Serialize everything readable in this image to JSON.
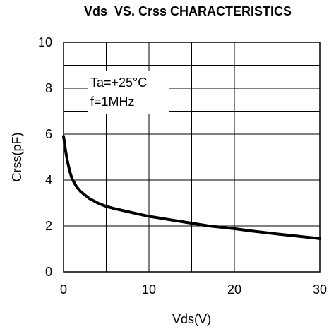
{
  "chart_data": {
    "type": "line",
    "title": "Vds  VS. Crss CHARACTERISTICS",
    "xlabel": "Vds(V)",
    "ylabel": "Crss(pF)",
    "xlim": [
      0,
      30
    ],
    "ylim": [
      0,
      10
    ],
    "x_ticks": [
      0,
      10,
      20,
      30
    ],
    "y_ticks": [
      0,
      2,
      4,
      6,
      8,
      10
    ],
    "x_grid_step": 5,
    "y_grid_step": 1,
    "grid": true,
    "legend": "none",
    "annotations": [
      "Ta=+25°C",
      "f=1MHz"
    ],
    "colors": {
      "line": "#000000",
      "grid": "#000000",
      "background": "#ffffff"
    },
    "series": [
      {
        "x": [
          0,
          0.25,
          0.5,
          0.75,
          1,
          1.5,
          2,
          3,
          4,
          5,
          6,
          8,
          10,
          12,
          15,
          17,
          20,
          22,
          25,
          28,
          30
        ],
        "y": [
          5.9,
          5.25,
          4.75,
          4.35,
          4.05,
          3.72,
          3.5,
          3.2,
          3.0,
          2.85,
          2.75,
          2.58,
          2.42,
          2.3,
          2.12,
          2.0,
          1.88,
          1.78,
          1.65,
          1.53,
          1.45
        ]
      }
    ]
  }
}
